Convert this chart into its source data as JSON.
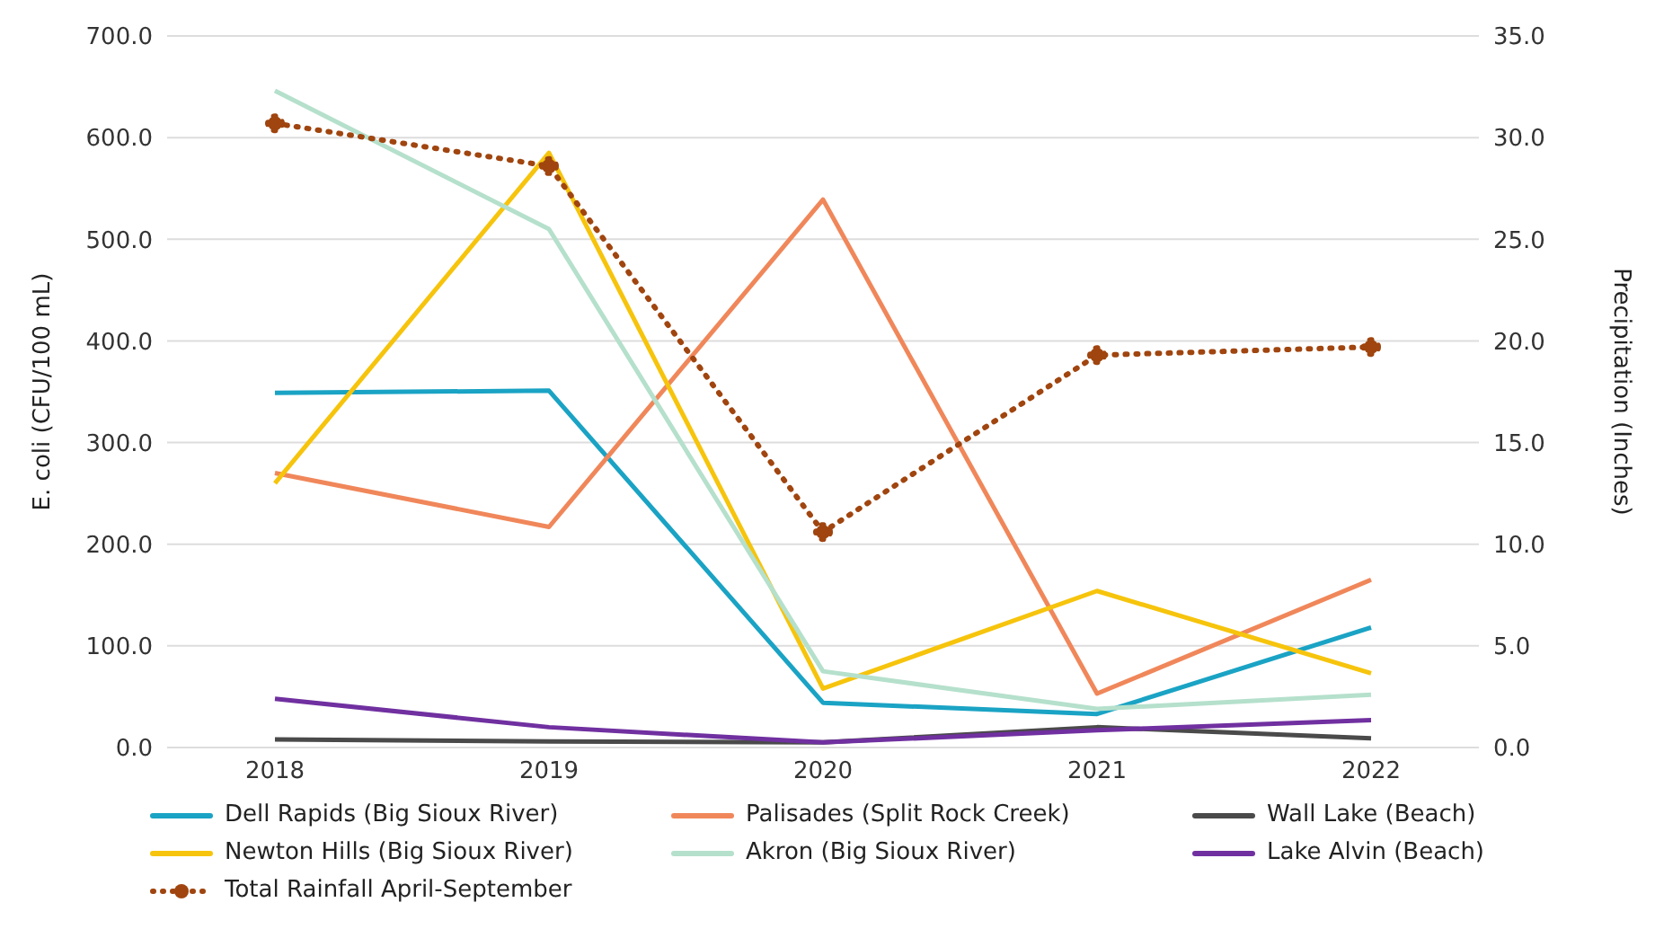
{
  "chart_data": {
    "type": "line",
    "categories": [
      "2018",
      "2019",
      "2020",
      "2021",
      "2022"
    ],
    "ylabel": "E. coli (CFU/100 mL)",
    "y2label": "Precipitation (Inches)",
    "ylim": [
      0,
      700
    ],
    "yticks": [
      {
        "value": 0,
        "label": "0.0"
      },
      {
        "value": 100,
        "label": "100.0"
      },
      {
        "value": 200,
        "label": "200.0"
      },
      {
        "value": 300,
        "label": "300.0"
      },
      {
        "value": 400,
        "label": "400.0"
      },
      {
        "value": 500,
        "label": "500.0"
      },
      {
        "value": 600,
        "label": "600.0"
      },
      {
        "value": 700,
        "label": "700.0"
      }
    ],
    "y2lim": [
      0,
      35
    ],
    "y2ticks": [
      {
        "value": 0,
        "label": "0.0"
      },
      {
        "value": 5,
        "label": "5.0"
      },
      {
        "value": 10,
        "label": "10.0"
      },
      {
        "value": 15,
        "label": "15.0"
      },
      {
        "value": 20,
        "label": "20.0"
      },
      {
        "value": 25,
        "label": "25.0"
      },
      {
        "value": 30,
        "label": "30.0"
      },
      {
        "value": 35,
        "label": "35.0"
      }
    ],
    "grid": "y",
    "legend": "bottom",
    "series": [
      {
        "name": "Dell Rapids (Big Sioux River)",
        "color": "#1aa3c4",
        "values": [
          349,
          351,
          44,
          33,
          118
        ],
        "marker": "none",
        "line_style": "solid"
      },
      {
        "name": "Palisades (Split Rock Creek)",
        "color": "#f0875a",
        "values": [
          270,
          217,
          539,
          53,
          165
        ],
        "marker": "none",
        "line_style": "solid"
      },
      {
        "name": "Wall Lake (Beach)",
        "color": "#4a4a4a",
        "values": [
          8,
          6,
          5,
          20,
          9
        ],
        "marker": "none",
        "line_style": "solid"
      },
      {
        "name": "Newton Hills (Big Sioux River)",
        "color": "#f6c40c",
        "values": [
          260,
          585,
          58,
          154,
          73
        ],
        "marker": "none",
        "line_style": "solid"
      },
      {
        "name": "Akron (Big Sioux River)",
        "color": "#b5e0cc",
        "values": [
          646,
          510,
          75,
          38,
          52
        ],
        "marker": "none",
        "line_style": "solid"
      },
      {
        "name": "Lake Alvin (Beach)",
        "color": "#7030a0",
        "values": [
          48,
          20,
          5,
          17,
          27
        ],
        "marker": "none",
        "line_style": "solid"
      },
      {
        "name": "Total Rainfall April-September",
        "color": "#a0450f",
        "values": [
          30.7,
          28.6,
          10.6,
          19.3,
          19.7
        ],
        "axis": "y2",
        "marker": "circle",
        "line_style": "dotted"
      }
    ]
  }
}
